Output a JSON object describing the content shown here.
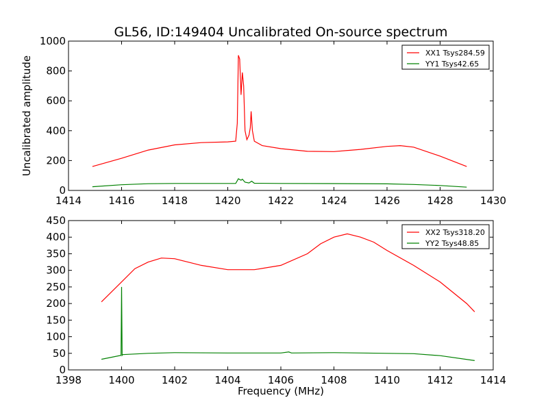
{
  "chart_data": [
    {
      "type": "line",
      "title": "GL56, ID:149404 Uncalibrated On-source spectrum",
      "xlabel": "",
      "ylabel": "Uncalibrated amplitude",
      "xlim": [
        1414,
        1430
      ],
      "ylim": [
        0,
        1000
      ],
      "xticks": [
        1414,
        1416,
        1418,
        1420,
        1422,
        1424,
        1426,
        1428,
        1430
      ],
      "yticks": [
        0,
        200,
        400,
        600,
        800,
        1000
      ],
      "legend": "top-right",
      "series": [
        {
          "name": "XX1 Tsys284.59",
          "color": "#ff0000",
          "x": [
            1414.9,
            1416,
            1417,
            1418,
            1419,
            1420,
            1420.3,
            1420.36,
            1420.4,
            1420.45,
            1420.5,
            1420.55,
            1420.6,
            1420.65,
            1420.72,
            1420.8,
            1420.85,
            1420.88,
            1420.93,
            1421,
            1421.3,
            1422,
            1423,
            1424,
            1425,
            1426,
            1426.5,
            1427,
            1428,
            1429
          ],
          "y": [
            160,
            215,
            270,
            305,
            320,
            325,
            330,
            450,
            905,
            880,
            640,
            790,
            700,
            400,
            340,
            370,
            420,
            530,
            400,
            330,
            300,
            280,
            262,
            260,
            275,
            295,
            300,
            290,
            230,
            160
          ]
        },
        {
          "name": "YY1 Tsys42.65",
          "color": "#008000",
          "x": [
            1414.9,
            1416,
            1417,
            1418,
            1420.3,
            1420.4,
            1420.5,
            1420.55,
            1420.65,
            1420.8,
            1420.9,
            1421,
            1422,
            1424,
            1426,
            1427,
            1428,
            1429
          ],
          "y": [
            25,
            38,
            45,
            47,
            47,
            78,
            68,
            75,
            55,
            50,
            62,
            48,
            47,
            46,
            44,
            40,
            33,
            22
          ]
        }
      ]
    },
    {
      "type": "line",
      "title": "",
      "xlabel": "Frequency (MHz)",
      "ylabel": "",
      "xlim": [
        1398,
        1414
      ],
      "ylim": [
        0,
        450
      ],
      "xticks": [
        1398,
        1400,
        1402,
        1404,
        1406,
        1408,
        1410,
        1412,
        1414
      ],
      "yticks": [
        0,
        50,
        100,
        150,
        200,
        250,
        300,
        350,
        400,
        450
      ],
      "legend": "top-right",
      "series": [
        {
          "name": "XX2 Tsys318.20",
          "color": "#ff0000",
          "x": [
            1399.24,
            1400,
            1400.5,
            1401,
            1401.5,
            1402,
            1402.5,
            1403,
            1404,
            1405,
            1406,
            1407,
            1407.5,
            1408,
            1408.5,
            1409,
            1409.5,
            1410,
            1411,
            1412,
            1413,
            1413.3
          ],
          "y": [
            205,
            265,
            305,
            325,
            337,
            335,
            325,
            315,
            302,
            302,
            315,
            350,
            380,
            400,
            410,
            400,
            385,
            360,
            315,
            265,
            200,
            175
          ]
        },
        {
          "name": "YY2 Tsys48.85",
          "color": "#008000",
          "x": [
            1399.24,
            1399.98,
            1400.0,
            1400.02,
            1400.04,
            1401,
            1402,
            1404,
            1406,
            1406.3,
            1406.4,
            1408,
            1410,
            1411,
            1412,
            1413.3
          ],
          "y": [
            32,
            44,
            250,
            44,
            46,
            50,
            52,
            51,
            51,
            54,
            51,
            52,
            50,
            49,
            43,
            28
          ]
        }
      ]
    }
  ]
}
